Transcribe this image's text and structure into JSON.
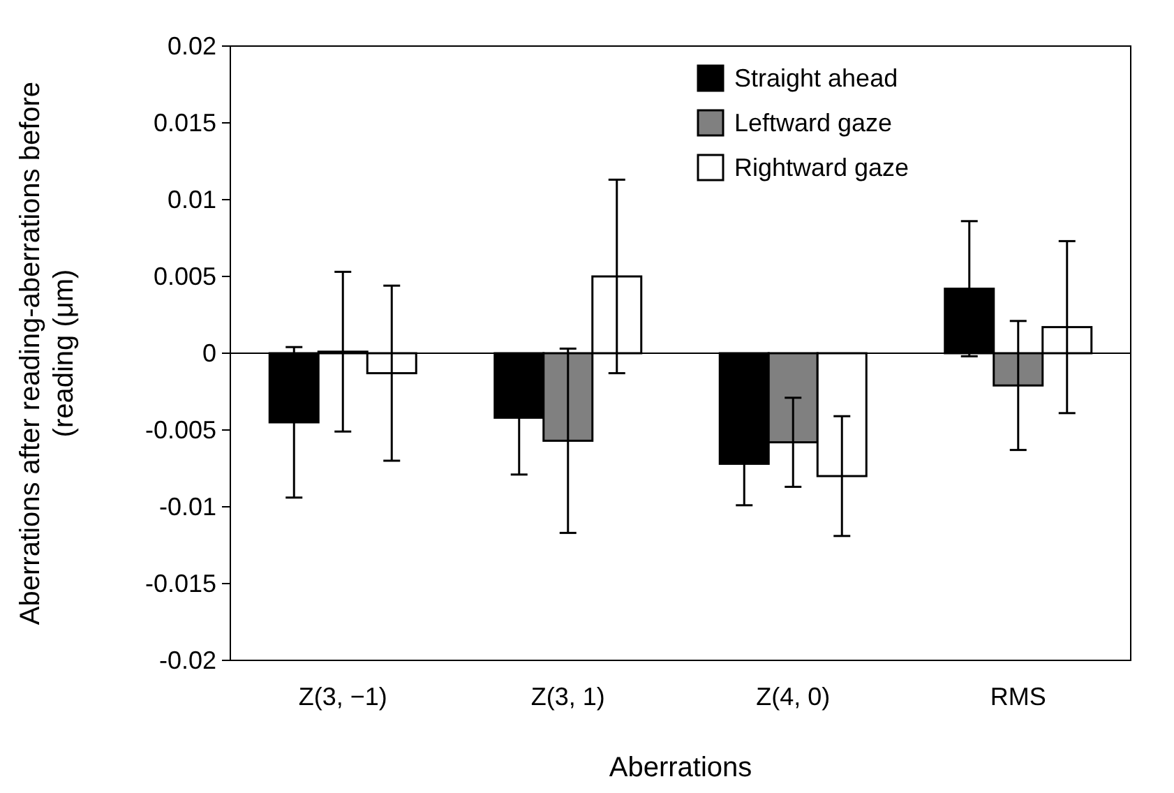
{
  "chart_data": {
    "type": "bar",
    "xlabel": "Aberrations",
    "ylabel": "Aberrations after reading-aberrations before (reading (μm)",
    "categories": [
      "Z(3, −1)",
      "Z(3, 1)",
      "Z(4, 0)",
      "RMS"
    ],
    "series": [
      {
        "name": "Straight ahead",
        "color": "#000000",
        "values": [
          -0.0045,
          -0.0042,
          -0.0072,
          0.0042
        ],
        "errors": [
          0.0049,
          0.0037,
          0.0027,
          0.0044
        ]
      },
      {
        "name": "Leftward gaze",
        "color": "#808080",
        "values": [
          0.0001,
          -0.0057,
          -0.0058,
          -0.0021
        ],
        "errors": [
          0.0052,
          0.006,
          0.0029,
          0.0042
        ]
      },
      {
        "name": "Rightward gaze",
        "color": "#ffffff",
        "values": [
          -0.0013,
          0.005,
          -0.008,
          0.0017
        ],
        "errors": [
          0.0057,
          0.0063,
          0.0039,
          0.0056
        ]
      }
    ],
    "ylim": [
      -0.02,
      0.02
    ],
    "yticks": [
      -0.02,
      -0.015,
      -0.01,
      -0.005,
      0,
      0.005,
      0.01,
      0.015,
      0.02
    ],
    "legend": "top right",
    "ref_lines": [
      {
        "axis": "y",
        "value": 0,
        "color": "#000000"
      }
    ]
  }
}
